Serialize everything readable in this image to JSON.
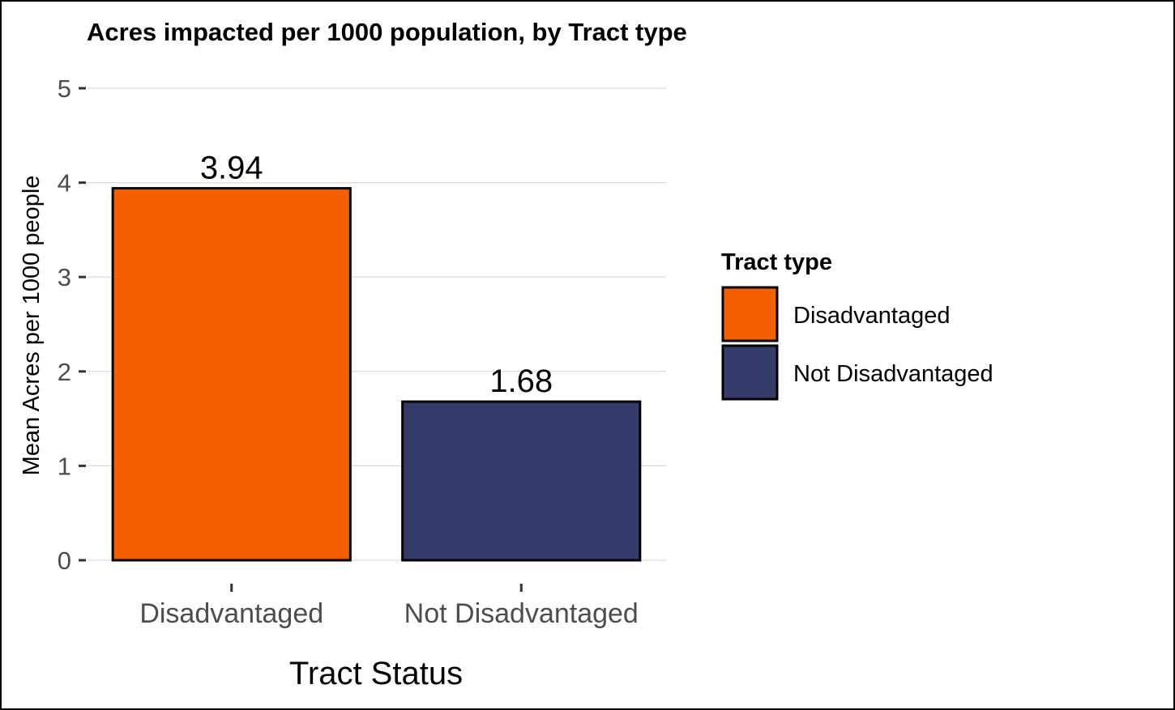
{
  "chart_data": {
    "type": "bar",
    "title": "Acres impacted per 1000 population, by Tract type",
    "xlabel": "Tract Status",
    "ylabel": "Mean Acres per 1000 people",
    "categories": [
      "Disadvantaged",
      "Not Disadvantaged"
    ],
    "values": [
      3.94,
      1.68
    ],
    "data_labels": [
      "3.94",
      "1.68"
    ],
    "colors": [
      "#f55f00",
      "#363c6a"
    ],
    "outline_color": "#000000",
    "ylim": [
      0,
      5
    ],
    "yticks": [
      0,
      1,
      2,
      3,
      4,
      5
    ],
    "ytick_labels": [
      "0",
      "1",
      "2",
      "3",
      "4",
      "5"
    ],
    "grid": "horizontal-major",
    "legend": {
      "title": "Tract type",
      "position": "right",
      "entries": [
        {
          "label": "Disadvantaged",
          "color": "#f55f00"
        },
        {
          "label": "Not Disadvantaged",
          "color": "#363c6a"
        }
      ]
    }
  }
}
